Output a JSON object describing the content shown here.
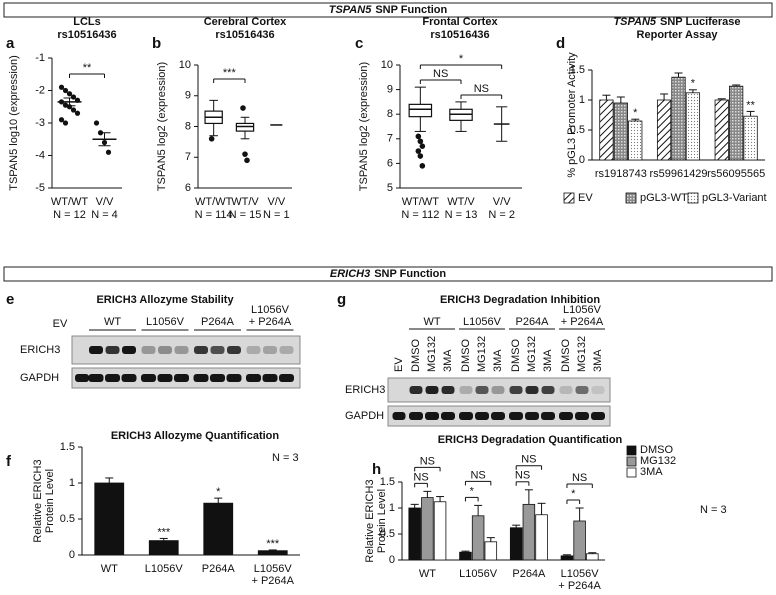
{
  "headers": [
    {
      "gene": "TSPAN5",
      "text": "SNP Function"
    },
    {
      "gene": "ERICH3",
      "text": "SNP Function"
    }
  ],
  "chart_data": [
    {
      "type": "dot",
      "label": "a",
      "title": [
        "LCLs",
        "rs10516436"
      ],
      "ylabel": "TSPAN5 log10 (expression)",
      "ylim": [
        -5,
        -1
      ],
      "yticks": [
        -5,
        -4,
        -3,
        -2,
        -1
      ],
      "categories": [
        "WT/WT",
        "V/V"
      ],
      "n_labels": [
        "N = 12",
        "N = 4"
      ],
      "groups": [
        {
          "values": [
            -1.9,
            -2.0,
            -2.1,
            -2.2,
            -2.3,
            -2.35,
            -2.45,
            -2.5,
            -2.6,
            -2.7,
            -2.9,
            -3.0
          ],
          "mean": -2.35,
          "sem": 0.12
        },
        {
          "values": [
            -3.0,
            -3.3,
            -3.6,
            -3.9
          ],
          "mean": -3.5,
          "sem": 0.2
        }
      ],
      "comparisons": [
        {
          "groups": [
            "WT/WT",
            "V/V"
          ],
          "label": "**"
        }
      ]
    },
    {
      "type": "box",
      "label": "b",
      "title": [
        "Cerebral Cortex",
        "rs10516436"
      ],
      "ylabel": "TSPAN5 log2 (expression)",
      "ylim": [
        6,
        10
      ],
      "yticks": [
        6,
        7,
        8,
        9,
        10
      ],
      "categories": [
        "WT/WT",
        "WT/V",
        "V/V"
      ],
      "n_labels": [
        "N = 114",
        "N = 15",
        "N = 1"
      ],
      "groups": [
        {
          "whisker_low": 7.7,
          "q1": 8.1,
          "median": 8.3,
          "q3": 8.5,
          "whisker_high": 8.85,
          "outliers": [
            7.6
          ]
        },
        {
          "whisker_low": 7.6,
          "q1": 7.85,
          "median": 8.0,
          "q3": 8.1,
          "whisker_high": 8.3,
          "outliers": [
            8.6,
            7.1,
            6.9
          ]
        },
        {
          "median": 8.05
        }
      ],
      "comparisons": [
        {
          "groups": [
            "WT/WT",
            "WT/V"
          ],
          "label": "***"
        }
      ]
    },
    {
      "type": "box",
      "label": "c",
      "title": [
        "Frontal Cortex",
        "rs10516436"
      ],
      "ylabel": "TSPAN5 log2 (expression)",
      "ylim": [
        5,
        10
      ],
      "yticks": [
        5,
        6,
        7,
        8,
        9,
        10
      ],
      "categories": [
        "WT/WT",
        "WT/V",
        "V/V"
      ],
      "n_labels": [
        "N = 112",
        "N = 13",
        "N = 2"
      ],
      "groups": [
        {
          "whisker_low": 7.3,
          "q1": 7.9,
          "median": 8.2,
          "q3": 8.4,
          "whisker_high": 9.1,
          "outliers": [
            7.1,
            6.9,
            6.7,
            6.5,
            6.3,
            5.9
          ]
        },
        {
          "whisker_low": 7.3,
          "q1": 7.75,
          "median": 8.0,
          "q3": 8.2,
          "whisker_high": 8.5
        },
        {
          "whisker_low": 6.9,
          "median": 7.6,
          "whisker_high": 8.3
        }
      ],
      "comparisons": [
        {
          "groups": [
            "WT/V",
            "V/V"
          ],
          "label": "NS"
        },
        {
          "groups": [
            "WT/WT",
            "WT/V"
          ],
          "label": "NS"
        },
        {
          "groups": [
            "WT/WT",
            "V/V"
          ],
          "label": "*"
        }
      ]
    },
    {
      "type": "bar",
      "label": "d",
      "title_gene": "TSPAN5",
      "title": [
        "SNP Luciferase",
        "Reporter Assay"
      ],
      "ylabel": "% pGL3 Promoter Activity",
      "ylim": [
        0,
        1.5
      ],
      "yticks": [
        0,
        0.5,
        1,
        1.5
      ],
      "categories": [
        "rs1918743",
        "rs59961429",
        "rs56095565"
      ],
      "series": [
        {
          "name": "EV",
          "pattern": "hatch",
          "values": [
            1.0,
            1.0,
            1.0
          ],
          "errors": [
            0.08,
            0.1,
            0.02
          ]
        },
        {
          "name": "pGL3-WT",
          "pattern": "grid",
          "values": [
            0.95,
            1.38,
            1.23
          ],
          "errors": [
            0.1,
            0.07,
            0.02
          ]
        },
        {
          "name": "pGL3-Variant",
          "pattern": "dots",
          "values": [
            0.65,
            1.12,
            0.73
          ],
          "errors": [
            0.03,
            0.05,
            0.08
          ],
          "significance": [
            "*",
            "*",
            "**"
          ]
        }
      ],
      "legend": "bottom"
    },
    {
      "type": "bar",
      "label": "f",
      "title": [
        "ERICH3 Allozyme Quantification"
      ],
      "ylabel": [
        "Relative ERICH3",
        "Protein Level"
      ],
      "ylim": [
        0,
        1.5
      ],
      "yticks": [
        0,
        0.5,
        1,
        1.5
      ],
      "categories": [
        "WT",
        "L1056V",
        "P264A",
        [
          "L1056V",
          "+ P264A"
        ]
      ],
      "color": "#111111",
      "values": [
        1.0,
        0.2,
        0.72,
        0.06
      ],
      "errors": [
        0.07,
        0.03,
        0.07,
        0.01
      ],
      "significance": [
        null,
        "***",
        "*",
        "***"
      ],
      "annotation": "N = 3"
    },
    {
      "type": "bar",
      "label": "h",
      "title": [
        "ERICH3 Degradation Quantification"
      ],
      "ylabel": [
        "Relative ERICH3",
        "Protein Level"
      ],
      "ylim": [
        0,
        1.5
      ],
      "yticks": [
        0,
        0.5,
        1,
        1.5
      ],
      "categories": [
        "WT",
        "L1056V",
        "P264A",
        [
          "L1056V",
          "+ P264A"
        ]
      ],
      "series": [
        {
          "name": "DMSO",
          "color": "#111111",
          "values": [
            1.0,
            0.15,
            0.62,
            0.08
          ],
          "errors": [
            0.07,
            0.02,
            0.05,
            0.02
          ]
        },
        {
          "name": "MG132",
          "color": "#999999",
          "values": [
            1.2,
            0.85,
            1.07,
            0.75
          ],
          "errors": [
            0.12,
            0.2,
            0.28,
            0.25
          ]
        },
        {
          "name": "3MA",
          "color": "#ffffff",
          "values": [
            1.12,
            0.35,
            0.87,
            0.12
          ],
          "errors": [
            0.1,
            0.08,
            0.22,
            0.02
          ]
        }
      ],
      "comparisons": [
        {
          "series": [
            "DMSO",
            "MG132"
          ],
          "labels": [
            "NS",
            "*",
            "NS",
            "*"
          ]
        },
        {
          "series": [
            "DMSO",
            "3MA"
          ],
          "labels": [
            "NS",
            "NS",
            "NS",
            "NS"
          ]
        }
      ],
      "legend": "top-right",
      "annotation": "N = 3"
    }
  ],
  "blots": [
    {
      "label": "e",
      "title": "ERICH3 Allozyme Stability",
      "lane_label": "EV",
      "groups": [
        "WT",
        "L1056V",
        "P264A",
        [
          "L1056V",
          "+ P264A"
        ]
      ],
      "rows": [
        "ERICH3",
        "GAPDH"
      ]
    },
    {
      "label": "g",
      "title": "ERICH3 Degradation Inhibition",
      "lane_label": "EV",
      "groups": [
        "WT",
        "L1056V",
        "P264A",
        [
          "L1056V",
          "+ P264A"
        ]
      ],
      "treatments": [
        "DMSO",
        "MG132",
        "3MA"
      ],
      "rows": [
        "ERICH3",
        "GAPDH"
      ]
    }
  ]
}
